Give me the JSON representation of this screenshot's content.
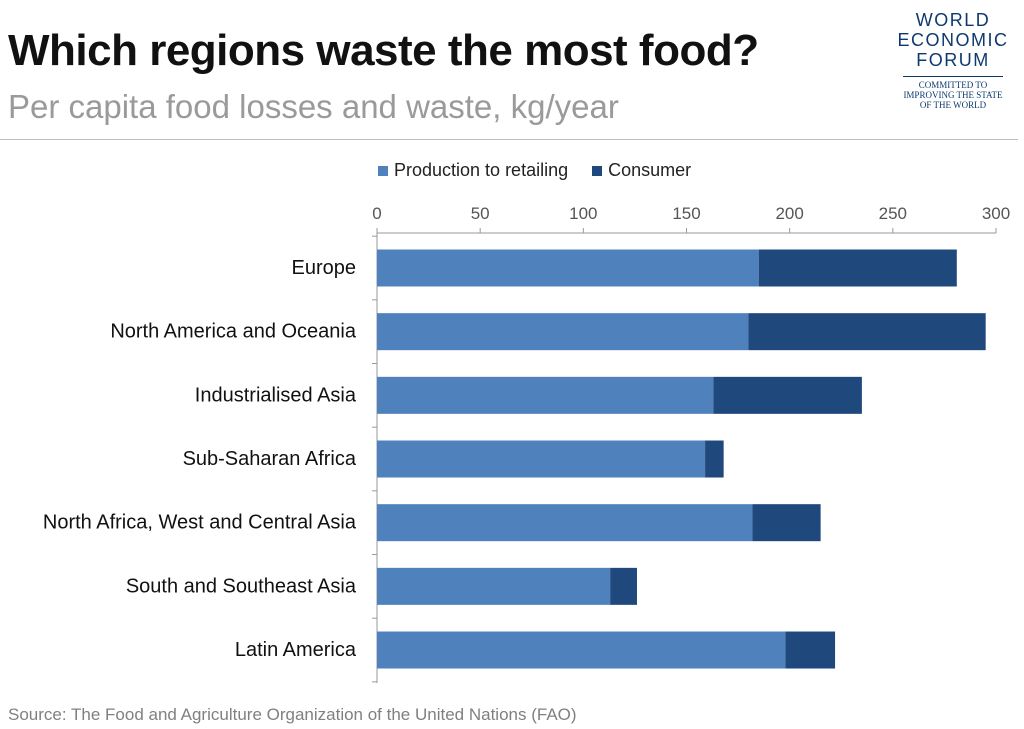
{
  "header": {
    "title": "Which regions waste the most food?",
    "subtitle": "Per capita food losses and waste, kg/year"
  },
  "logo": {
    "lines": [
      "WORLD",
      "ECONOMIC",
      "FORUM"
    ],
    "tagline": [
      "COMMITTED TO",
      "IMPROVING THE STATE",
      "OF THE WORLD"
    ]
  },
  "source": "Source: The Food and Agriculture Organization of the United Nations (FAO)",
  "colors": {
    "production": "#4f81bd",
    "consumer": "#1f497d",
    "axis": "#999999"
  },
  "chart_data": {
    "type": "bar",
    "orientation": "horizontal",
    "stacked": true,
    "title": "Which regions waste the most food?",
    "subtitle": "Per capita food losses and waste, kg/year",
    "categories": [
      "Europe",
      "North America and Oceania",
      "Industrialised Asia",
      "Sub-Saharan Africa",
      "North Africa, West and Central Asia",
      "South and Southeast Asia",
      "Latin America"
    ],
    "series": [
      {
        "name": "Production to retailing",
        "values": [
          185,
          180,
          163,
          159,
          182,
          113,
          198
        ]
      },
      {
        "name": "Consumer",
        "values": [
          96,
          115,
          72,
          9,
          33,
          13,
          24
        ]
      }
    ],
    "xlim": [
      0,
      300
    ],
    "xticks": [
      0,
      50,
      100,
      150,
      200,
      250,
      300
    ],
    "legend_position": "top",
    "grid": false
  }
}
